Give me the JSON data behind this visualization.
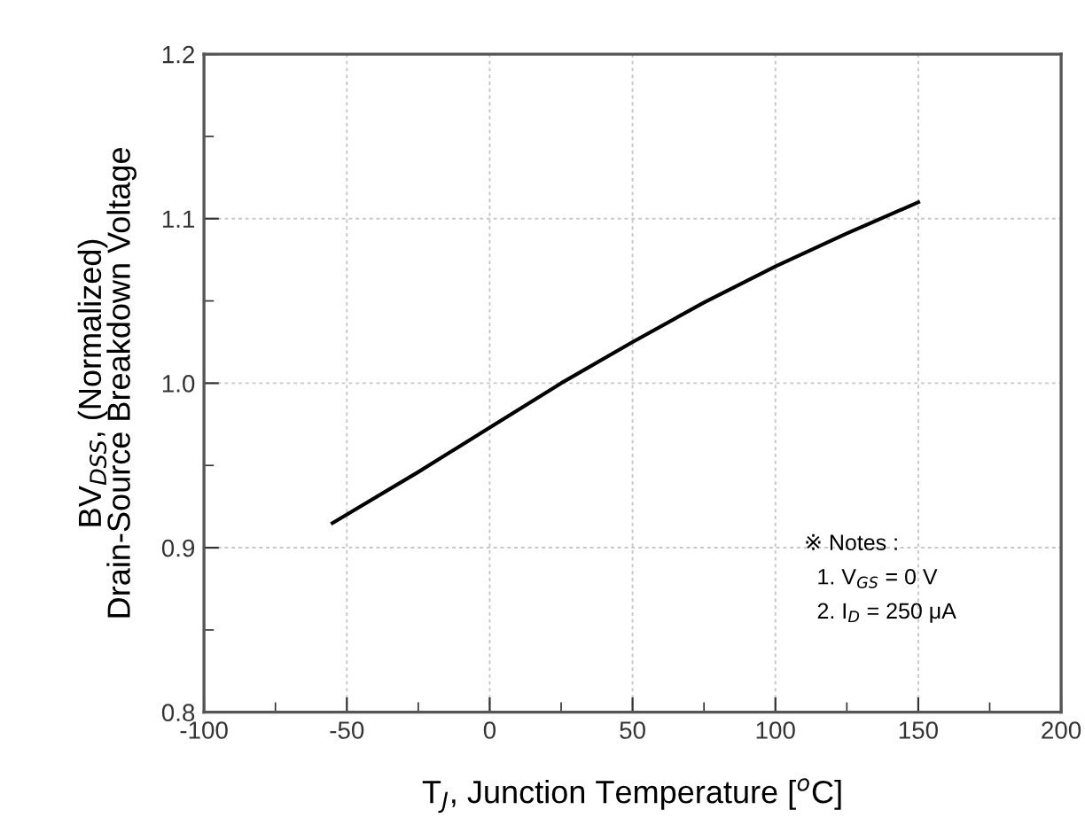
{
  "chart_data": {
    "type": "line",
    "xlabel": "T$_{J}$, Junction Temperature [$^{o}$C]",
    "ylabel": "BV$_{DSS}$, (Normalized)\nDrain-Source Breakdown Voltage",
    "x": [
      -55,
      -25,
      0,
      25,
      50,
      75,
      100,
      125,
      150
    ],
    "series": [
      {
        "color": "#000000",
        "values": [
          0.915,
          0.946,
          0.973,
          1.0,
          1.025,
          1.049,
          1.071,
          1.091,
          1.11
        ]
      }
    ],
    "xlim": [
      -100,
      200
    ],
    "xticks": [
      -100,
      -50,
      0,
      50,
      100,
      150,
      200
    ],
    "ylim": [
      0.8,
      1.2
    ],
    "yticks": [
      0.8,
      0.9,
      {
        "value": 1.0,
        "label": "1.0"
      },
      1.1,
      1.2
    ],
    "grid": true,
    "marker": "none",
    "line_style": "solid",
    "annotations": [
      "※ Notes :",
      "1. V$_{GS}$ = 0 V",
      "2. I$_{D}$ = 250 μA"
    ]
  }
}
